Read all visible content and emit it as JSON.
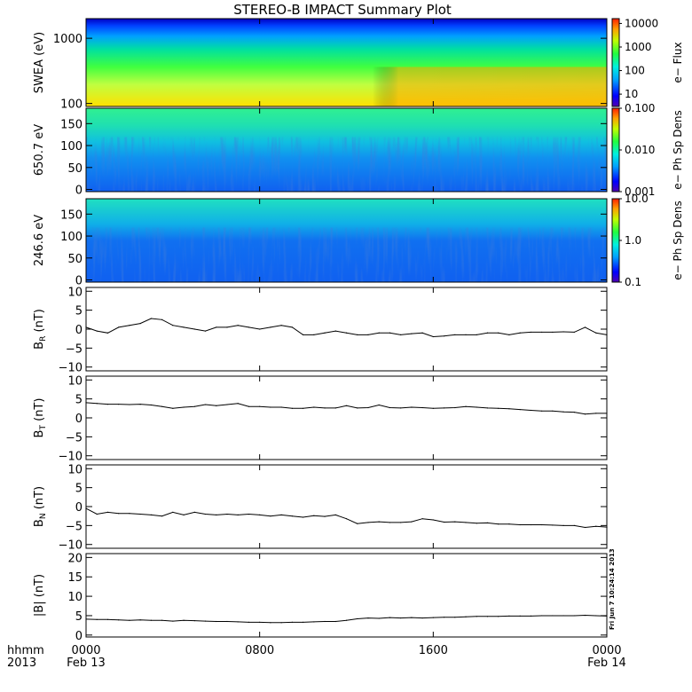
{
  "chart_data": {
    "title": "STEREO-B IMPACT Summary Plot",
    "type": "line",
    "x_axis": {
      "ticks": [
        {
          "hour": 0,
          "label": "0000"
        },
        {
          "hour": 8,
          "label": "0800"
        },
        {
          "hour": 16,
          "label": "1600"
        },
        {
          "hour": 24,
          "label": "0000"
        }
      ],
      "date_labels": [
        {
          "hour": 0,
          "label": "Feb 13"
        },
        {
          "hour": 24,
          "label": "Feb 14"
        }
      ],
      "left_label_top": "hhmm",
      "left_label_bottom": "2013",
      "range_hours": [
        0,
        24
      ]
    },
    "spectrograms": [
      {
        "name": "swea",
        "ylabel": "SWEA (eV)",
        "yscale": "log",
        "ylim": [
          90,
          2000
        ],
        "yticks": [
          {
            "v": 100,
            "label": "100"
          },
          {
            "v": 1000,
            "label": "1000"
          }
        ],
        "colorbar": {
          "label": "e− Flux",
          "scale": "log",
          "range": [
            3,
            16000
          ],
          "ticks": [
            {
              "v": 10,
              "label": "10"
            },
            {
              "v": 100,
              "label": "100"
            },
            {
              "v": 1000,
              "label": "1000"
            },
            {
              "v": 10000,
              "label": "10000"
            }
          ]
        }
      },
      {
        "name": "pad-650",
        "ylabel": "650.7  eV",
        "yscale": "linear",
        "ylim": [
          -5,
          185
        ],
        "yticks": [
          {
            "v": 0,
            "label": "0"
          },
          {
            "v": 50,
            "label": "50"
          },
          {
            "v": 100,
            "label": "100"
          },
          {
            "v": 150,
            "label": "150"
          }
        ],
        "colorbar": {
          "label": "e−  Ph  Sp  Dens",
          "scale": "log",
          "range": [
            0.001,
            0.1
          ],
          "ticks": [
            {
              "v": 0.001,
              "label": "0.001"
            },
            {
              "v": 0.01,
              "label": "0.010"
            },
            {
              "v": 0.1,
              "label": "0.100"
            }
          ]
        }
      },
      {
        "name": "pad-246",
        "ylabel": "246.6  eV",
        "yscale": "linear",
        "ylim": [
          -5,
          185
        ],
        "yticks": [
          {
            "v": 0,
            "label": "0"
          },
          {
            "v": 50,
            "label": "50"
          },
          {
            "v": 100,
            "label": "100"
          },
          {
            "v": 150,
            "label": "150"
          }
        ],
        "colorbar": {
          "label": "e−  Ph  Sp  Dens",
          "scale": "log",
          "range": [
            0.1,
            10
          ],
          "ticks": [
            {
              "v": 0.1,
              "label": "0.1"
            },
            {
              "v": 1,
              "label": "1.0"
            },
            {
              "v": 10,
              "label": "10.0"
            }
          ]
        }
      }
    ],
    "line_panels": [
      {
        "name": "br",
        "ylabel": "B",
        "ylabel_sub": "R",
        "ylabel_unit": "(nT)",
        "ylim": [
          -11,
          11
        ],
        "yticks": [
          {
            "v": -10,
            "label": "−10"
          },
          {
            "v": -5,
            "label": "−5"
          },
          {
            "v": 0,
            "label": "0"
          },
          {
            "v": 5,
            "label": "5"
          },
          {
            "v": 10,
            "label": "10"
          }
        ],
        "series": {
          "x": [
            0,
            0.5,
            1,
            1.5,
            2,
            2.5,
            3,
            3.5,
            4,
            4.5,
            5,
            5.5,
            6,
            6.5,
            7,
            7.5,
            8,
            8.5,
            9,
            9.5,
            10,
            10.5,
            11,
            11.5,
            12,
            12.5,
            13,
            13.5,
            14,
            14.5,
            15,
            15.5,
            16,
            16.5,
            17,
            17.5,
            18,
            18.5,
            19,
            19.5,
            20,
            20.5,
            21,
            21.5,
            22,
            22.5,
            23,
            23.5,
            24
          ],
          "y": [
            0.5,
            -0.5,
            -1,
            0.5,
            1,
            1.5,
            2.8,
            2.5,
            1,
            0.5,
            0,
            -0.5,
            0.5,
            0.5,
            1,
            0.5,
            0,
            0.5,
            1,
            0.5,
            -1.5,
            -1.5,
            -1,
            -0.5,
            -1,
            -1.5,
            -1.5,
            -1,
            -1,
            -1.5,
            -1.2,
            -1,
            -2,
            -1.8,
            -1.5,
            -1.5,
            -1.5,
            -1,
            -1,
            -1.5,
            -1,
            -0.8,
            -0.8,
            -0.8,
            -0.7,
            -0.8,
            0.5,
            -1,
            -1.5
          ]
        }
      },
      {
        "name": "bt",
        "ylabel": "B",
        "ylabel_sub": "T",
        "ylabel_unit": "(nT)",
        "ylim": [
          -11,
          11
        ],
        "yticks": [
          {
            "v": -10,
            "label": "−10"
          },
          {
            "v": -5,
            "label": "−5"
          },
          {
            "v": 0,
            "label": "0"
          },
          {
            "v": 5,
            "label": "5"
          },
          {
            "v": 10,
            "label": "10"
          }
        ],
        "series": {
          "x": [
            0,
            0.5,
            1,
            1.5,
            2,
            2.5,
            3,
            3.5,
            4,
            4.5,
            5,
            5.5,
            6,
            6.5,
            7,
            7.5,
            8,
            8.5,
            9,
            9.5,
            10,
            10.5,
            11,
            11.5,
            12,
            12.5,
            13,
            13.5,
            14,
            14.5,
            15,
            15.5,
            16,
            16.5,
            17,
            17.5,
            18,
            18.5,
            19,
            19.5,
            20,
            20.5,
            21,
            21.5,
            22,
            22.5,
            23,
            23.5,
            24
          ],
          "y": [
            4,
            3.8,
            3.6,
            3.6,
            3.5,
            3.6,
            3.4,
            3,
            2.5,
            2.8,
            3,
            3.5,
            3.2,
            3.5,
            3.8,
            3,
            3,
            2.8,
            2.8,
            2.5,
            2.5,
            2.8,
            2.6,
            2.6,
            3.2,
            2.6,
            2.7,
            3.4,
            2.7,
            2.6,
            2.8,
            2.7,
            2.5,
            2.6,
            2.7,
            3,
            2.8,
            2.6,
            2.5,
            2.4,
            2.2,
            2,
            1.8,
            1.8,
            1.6,
            1.5,
            1,
            1.2,
            1.2
          ]
        }
      },
      {
        "name": "bn",
        "ylabel": "B",
        "ylabel_sub": "N",
        "ylabel_unit": "(nT)",
        "ylim": [
          -11,
          11
        ],
        "yticks": [
          {
            "v": -10,
            "label": "−10"
          },
          {
            "v": -5,
            "label": "−5"
          },
          {
            "v": 0,
            "label": "0"
          },
          {
            "v": 5,
            "label": "5"
          },
          {
            "v": 10,
            "label": "10"
          }
        ],
        "series": {
          "x": [
            0,
            0.5,
            1,
            1.5,
            2,
            2.5,
            3,
            3.5,
            4,
            4.5,
            5,
            5.5,
            6,
            6.5,
            7,
            7.5,
            8,
            8.5,
            9,
            9.5,
            10,
            10.5,
            11,
            11.5,
            12,
            12.5,
            13,
            13.5,
            14,
            14.5,
            15,
            15.5,
            16,
            16.5,
            17,
            17.5,
            18,
            18.5,
            19,
            19.5,
            20,
            20.5,
            21,
            21.5,
            22,
            22.5,
            23,
            23.5,
            24
          ],
          "y": [
            -0.5,
            -2,
            -1.5,
            -1.8,
            -1.8,
            -2,
            -2.2,
            -2.5,
            -1.5,
            -2.2,
            -1.5,
            -2,
            -2.2,
            -2,
            -2.2,
            -2,
            -2.2,
            -2.5,
            -2.2,
            -2.5,
            -2.8,
            -2.4,
            -2.6,
            -2.2,
            -3.2,
            -4.5,
            -4.2,
            -4,
            -4.2,
            -4.2,
            -4,
            -3.2,
            -3.5,
            -4.1,
            -4,
            -4.2,
            -4.4,
            -4.3,
            -4.6,
            -4.6,
            -4.8,
            -4.8,
            -4.8,
            -4.9,
            -5,
            -5,
            -5.5,
            -5.2,
            -5.4
          ]
        }
      },
      {
        "name": "bmag",
        "ylabel": "|B|",
        "ylabel_sub": "",
        "ylabel_unit": "(nT)",
        "ylim": [
          -0.5,
          21
        ],
        "yticks": [
          {
            "v": 0,
            "label": "0"
          },
          {
            "v": 5,
            "label": "5"
          },
          {
            "v": 10,
            "label": "10"
          },
          {
            "v": 15,
            "label": "15"
          },
          {
            "v": 20,
            "label": "20"
          }
        ],
        "series": {
          "x": [
            0,
            0.5,
            1,
            1.5,
            2,
            2.5,
            3,
            3.5,
            4,
            4.5,
            5,
            5.5,
            6,
            6.5,
            7,
            7.5,
            8,
            8.5,
            9,
            9.5,
            10,
            10.5,
            11,
            11.5,
            12,
            12.5,
            13,
            13.5,
            14,
            14.5,
            15,
            15.5,
            16,
            16.5,
            17,
            17.5,
            18,
            18.5,
            19,
            19.5,
            20,
            20.5,
            21,
            21.5,
            22,
            22.5,
            23,
            23.5,
            24
          ],
          "y": [
            4.1,
            4,
            4,
            3.9,
            3.8,
            3.9,
            3.8,
            3.8,
            3.6,
            3.8,
            3.7,
            3.6,
            3.5,
            3.5,
            3.4,
            3.3,
            3.3,
            3.2,
            3.2,
            3.3,
            3.3,
            3.4,
            3.5,
            3.5,
            3.8,
            4.2,
            4.4,
            4.3,
            4.5,
            4.4,
            4.5,
            4.4,
            4.5,
            4.6,
            4.6,
            4.7,
            4.8,
            4.8,
            4.8,
            4.9,
            4.9,
            4.9,
            5,
            5,
            5,
            5,
            5.1,
            5,
            4.9
          ]
        }
      }
    ],
    "stamp": "Fri Jun  7 10:24:14 2013"
  }
}
